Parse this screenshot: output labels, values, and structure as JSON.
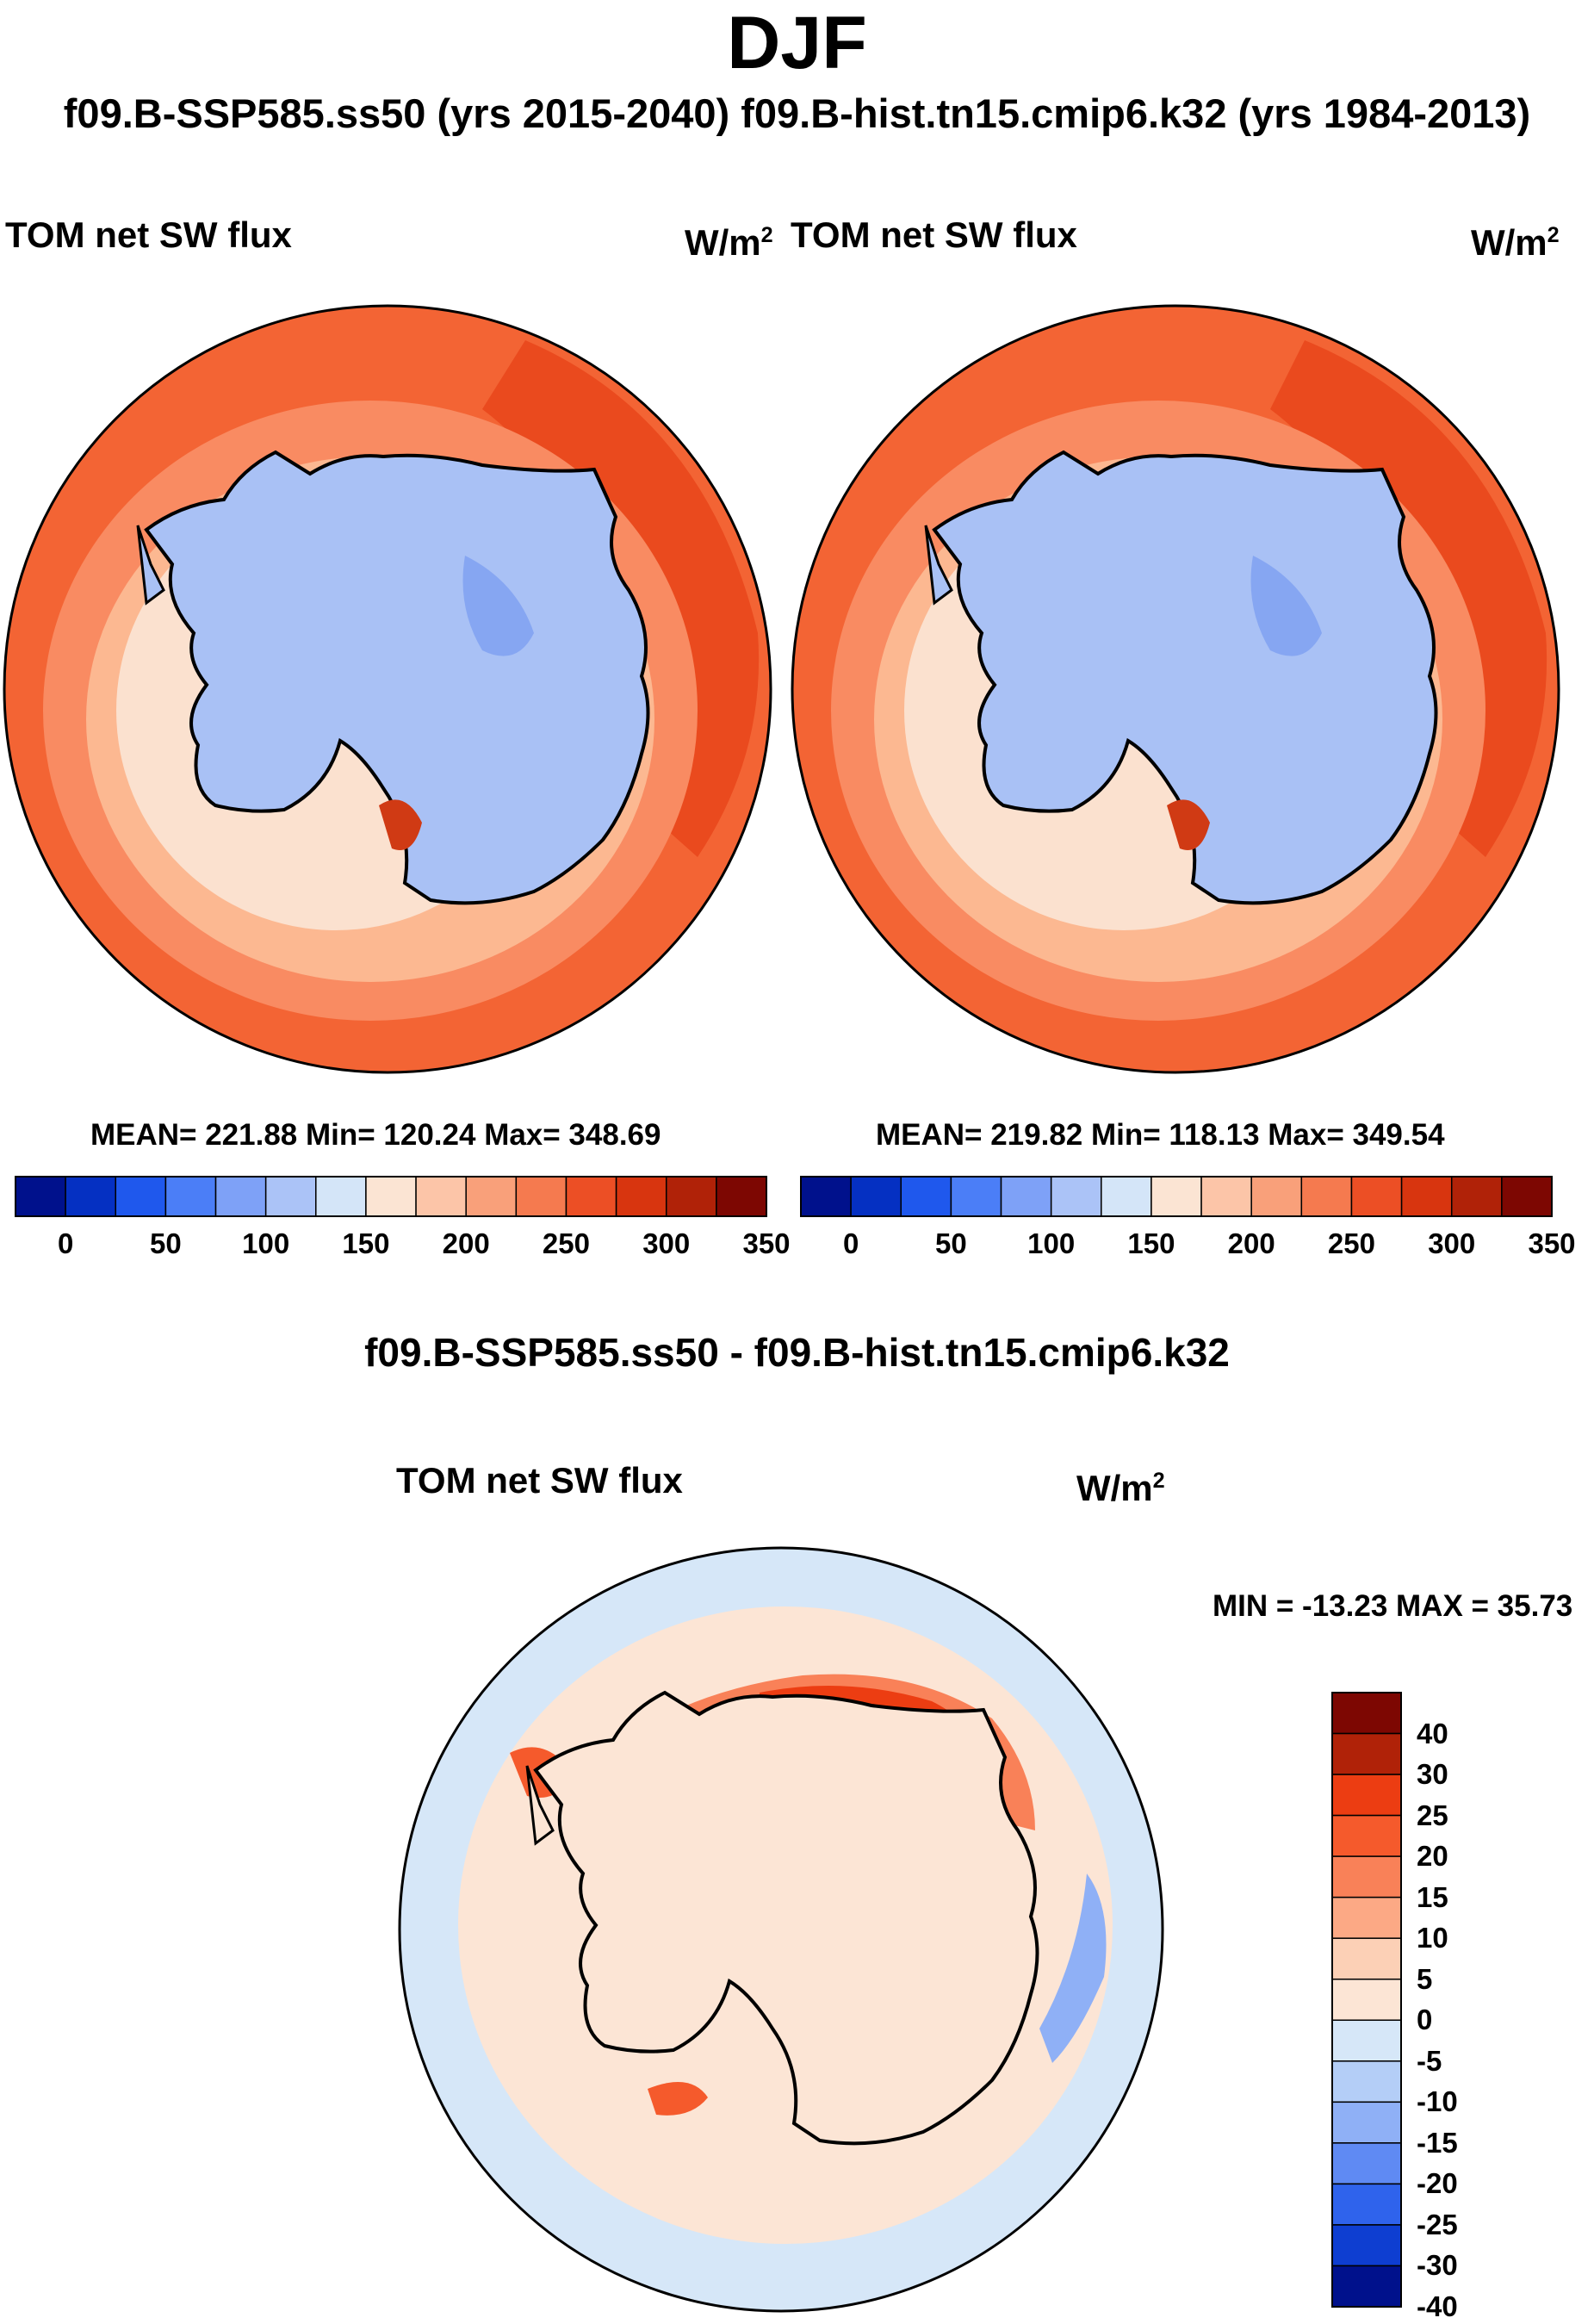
{
  "title": "DJF",
  "subtitle": "f09.B-SSP585.ss50 (yrs 2015-2040)  f09.B-hist.tn15.cmip6.k32 (yrs 1984-2013)",
  "panels": [
    {
      "variable": "TOM net SW flux",
      "units_base": "W/m",
      "units_exp": "2",
      "stats": "MEAN= 221.88  Min= 120.24  Max= 348.69",
      "colorbar_ticks": [
        "0",
        "50",
        "100",
        "150",
        "200",
        "250",
        "300",
        "350"
      ]
    },
    {
      "variable": "TOM net SW flux",
      "units_base": "W/m",
      "units_exp": "2",
      "stats": "MEAN= 219.82  Min= 118.13  Max= 349.54",
      "colorbar_ticks": [
        "0",
        "50",
        "100",
        "150",
        "200",
        "250",
        "300",
        "350"
      ]
    }
  ],
  "diff": {
    "title": "f09.B-SSP585.ss50 - f09.B-hist.tn15.cmip6.k32",
    "variable": "TOM net SW flux",
    "units_base": "W/m",
    "units_exp": "2",
    "stats": "MIN = -13.23 MAX =  35.73",
    "colorbar_ticks": [
      "40",
      "30",
      "25",
      "20",
      "15",
      "10",
      "5",
      "0",
      "-5",
      "-10",
      "-15",
      "-20",
      "-25",
      "-30",
      "-40"
    ]
  },
  "colors": {
    "abs_scale": [
      "#00118c",
      "#0530c2",
      "#1f58ed",
      "#4b7ef7",
      "#7ea1f7",
      "#abc3f7",
      "#d4e5f8",
      "#fbe4d3",
      "#fcc5a8",
      "#f9a07a",
      "#f57a4f",
      "#ec4f25",
      "#d8350f",
      "#b02208",
      "#7d0702"
    ],
    "diff_scale": [
      "#7d0702",
      "#b02208",
      "#ec3d12",
      "#f55a2c",
      "#f98158",
      "#fca985",
      "#fcd0b6",
      "#fce5d5",
      "#d6e7f8",
      "#b4cef7",
      "#8fb0f6",
      "#5f8af3",
      "#2f63ec",
      "#0e3ed1",
      "#00118c"
    ],
    "ocean_warm": "#f25c2d",
    "land": "#a9c1f5"
  },
  "chart_data": [
    {
      "type": "heatmap",
      "projection": "south-polar-stereographic",
      "title": "TOM net SW flux",
      "units": "W/m2",
      "mean": 221.88,
      "min": 120.24,
      "max": 348.69,
      "contour_levels": [
        0,
        25,
        50,
        75,
        100,
        125,
        150,
        175,
        200,
        225,
        250,
        275,
        300,
        325,
        350
      ],
      "colorbar_ticks": [
        0,
        50,
        100,
        150,
        200,
        250,
        300,
        350
      ]
    },
    {
      "type": "heatmap",
      "projection": "south-polar-stereographic",
      "title": "TOM net SW flux",
      "units": "W/m2",
      "mean": 219.82,
      "min": 118.13,
      "max": 349.54,
      "contour_levels": [
        0,
        25,
        50,
        75,
        100,
        125,
        150,
        175,
        200,
        225,
        250,
        275,
        300,
        325,
        350
      ],
      "colorbar_ticks": [
        0,
        50,
        100,
        150,
        200,
        250,
        300,
        350
      ]
    },
    {
      "type": "heatmap",
      "projection": "south-polar-stereographic",
      "title": "f09.B-SSP585.ss50 - f09.B-hist.tn15.cmip6.k32",
      "units": "W/m2",
      "min": -13.23,
      "max": 35.73,
      "contour_levels": [
        40,
        30,
        25,
        20,
        15,
        10,
        5,
        0,
        -5,
        -10,
        -15,
        -20,
        -25,
        -30,
        -40
      ],
      "colorbar_ticks": [
        40,
        30,
        25,
        20,
        15,
        10,
        5,
        0,
        -5,
        -10,
        -15,
        -20,
        -25,
        -30,
        -40
      ]
    }
  ]
}
